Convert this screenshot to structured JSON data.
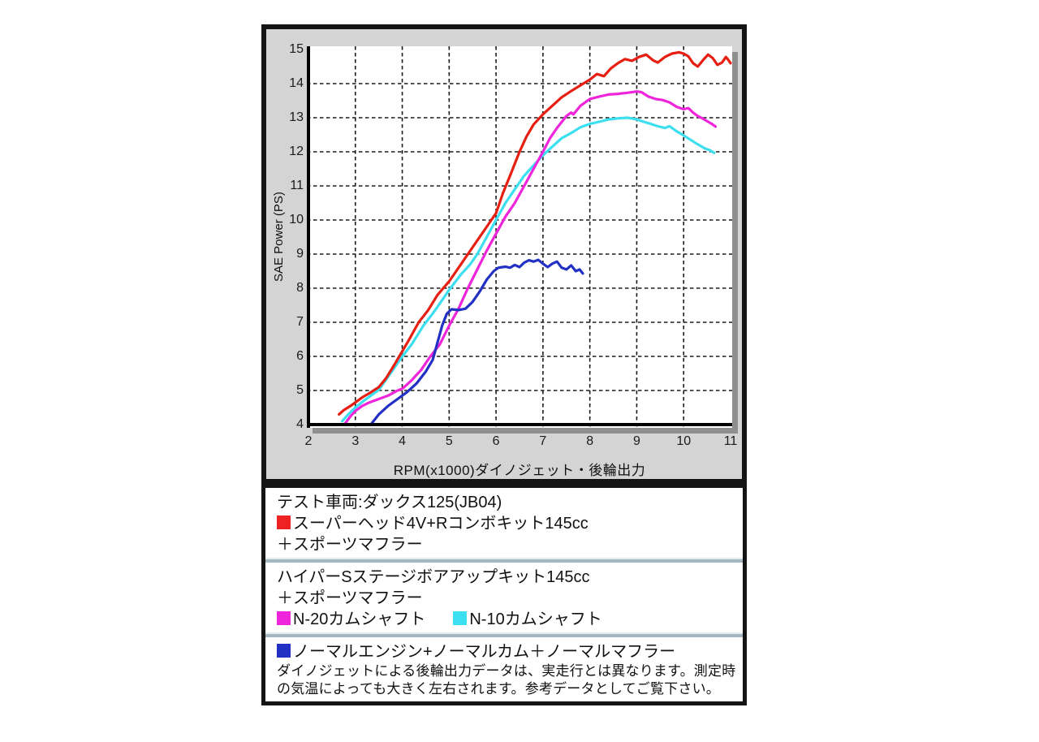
{
  "chart": {
    "panel_bg": "#d4d4d4",
    "plot_bg": "#ffffff",
    "shadow_color": "#8f8f8f",
    "grid_color": "#1a1a1a",
    "axis_color": "#000000",
    "x_axis_title": "RPM(x1000)ダイノジェット・後輪出力",
    "y_axis_title": "SAE Power (PS)",
    "x_ticks": [
      2,
      3,
      4,
      5,
      6,
      7,
      8,
      9,
      10,
      11
    ],
    "y_ticks": [
      15,
      14,
      13,
      12,
      11,
      10,
      9,
      8,
      7,
      6,
      5,
      4
    ]
  },
  "chart_data": {
    "type": "line",
    "xlabel": "RPM(x1000)ダイノジェット・後輪出力",
    "ylabel": "SAE Power (PS)",
    "xlim": [
      2,
      11
    ],
    "ylim": [
      4,
      15
    ],
    "grid": true,
    "legend_position": "below",
    "series": [
      {
        "name": "N-10カムシャフト",
        "color": "#3cdfef",
        "points": [
          [
            2.72,
            4.1
          ],
          [
            2.85,
            4.3
          ],
          [
            3.0,
            4.5
          ],
          [
            3.2,
            4.72
          ],
          [
            3.5,
            5.02
          ],
          [
            3.8,
            5.6
          ],
          [
            4.0,
            6.0
          ],
          [
            4.2,
            6.35
          ],
          [
            4.45,
            6.9
          ],
          [
            4.7,
            7.35
          ],
          [
            5.0,
            7.95
          ],
          [
            5.25,
            8.4
          ],
          [
            5.45,
            8.7
          ],
          [
            5.6,
            9.0
          ],
          [
            5.8,
            9.5
          ],
          [
            6.0,
            10.0
          ],
          [
            6.2,
            10.5
          ],
          [
            6.4,
            10.9
          ],
          [
            6.6,
            11.3
          ],
          [
            6.8,
            11.6
          ],
          [
            7.0,
            11.9
          ],
          [
            7.2,
            12.15
          ],
          [
            7.4,
            12.4
          ],
          [
            7.6,
            12.55
          ],
          [
            7.8,
            12.72
          ],
          [
            8.0,
            12.82
          ],
          [
            8.2,
            12.88
          ],
          [
            8.4,
            12.95
          ],
          [
            8.6,
            12.98
          ],
          [
            8.8,
            13.0
          ],
          [
            9.0,
            12.95
          ],
          [
            9.15,
            12.88
          ],
          [
            9.3,
            12.82
          ],
          [
            9.45,
            12.75
          ],
          [
            9.6,
            12.7
          ],
          [
            9.7,
            12.75
          ],
          [
            9.85,
            12.6
          ],
          [
            10.0,
            12.48
          ],
          [
            10.15,
            12.35
          ],
          [
            10.3,
            12.22
          ],
          [
            10.45,
            12.1
          ],
          [
            10.55,
            12.05
          ],
          [
            10.65,
            11.97
          ]
        ]
      },
      {
        "name": "N-20カムシャフト",
        "color": "#ef25dc",
        "points": [
          [
            2.78,
            4.03
          ],
          [
            2.9,
            4.25
          ],
          [
            3.0,
            4.4
          ],
          [
            3.15,
            4.55
          ],
          [
            3.3,
            4.65
          ],
          [
            3.5,
            4.75
          ],
          [
            3.7,
            4.85
          ],
          [
            3.9,
            5.0
          ],
          [
            4.0,
            5.05
          ],
          [
            4.2,
            5.3
          ],
          [
            4.4,
            5.6
          ],
          [
            4.6,
            6.0
          ],
          [
            4.8,
            6.35
          ],
          [
            5.0,
            6.9
          ],
          [
            5.2,
            7.4
          ],
          [
            5.4,
            8.0
          ],
          [
            5.6,
            8.55
          ],
          [
            5.8,
            9.1
          ],
          [
            6.0,
            9.6
          ],
          [
            6.2,
            10.1
          ],
          [
            6.4,
            10.5
          ],
          [
            6.6,
            11.0
          ],
          [
            6.8,
            11.5
          ],
          [
            7.0,
            12.0
          ],
          [
            7.15,
            12.4
          ],
          [
            7.3,
            12.7
          ],
          [
            7.5,
            13.05
          ],
          [
            7.6,
            13.15
          ],
          [
            7.65,
            13.1
          ],
          [
            7.8,
            13.35
          ],
          [
            8.0,
            13.55
          ],
          [
            8.2,
            13.62
          ],
          [
            8.4,
            13.68
          ],
          [
            8.6,
            13.7
          ],
          [
            8.8,
            13.73
          ],
          [
            9.0,
            13.77
          ],
          [
            9.1,
            13.75
          ],
          [
            9.25,
            13.62
          ],
          [
            9.4,
            13.55
          ],
          [
            9.55,
            13.52
          ],
          [
            9.7,
            13.45
          ],
          [
            9.85,
            13.32
          ],
          [
            10.0,
            13.25
          ],
          [
            10.1,
            13.28
          ],
          [
            10.2,
            13.15
          ],
          [
            10.3,
            13.05
          ],
          [
            10.4,
            12.98
          ],
          [
            10.5,
            12.9
          ],
          [
            10.6,
            12.82
          ],
          [
            10.68,
            12.74
          ]
        ]
      },
      {
        "name": "ノーマルエンジン+ノーマルカム＋ノーマルマフラー",
        "color": "#2231c4",
        "points": [
          [
            3.33,
            4.0
          ],
          [
            3.5,
            4.3
          ],
          [
            3.7,
            4.55
          ],
          [
            3.9,
            4.75
          ],
          [
            4.1,
            4.95
          ],
          [
            4.3,
            5.2
          ],
          [
            4.5,
            5.55
          ],
          [
            4.65,
            5.9
          ],
          [
            4.75,
            6.4
          ],
          [
            4.85,
            6.9
          ],
          [
            4.95,
            7.25
          ],
          [
            5.05,
            7.38
          ],
          [
            5.2,
            7.36
          ],
          [
            5.35,
            7.4
          ],
          [
            5.5,
            7.6
          ],
          [
            5.65,
            7.9
          ],
          [
            5.8,
            8.25
          ],
          [
            5.95,
            8.5
          ],
          [
            6.05,
            8.6
          ],
          [
            6.2,
            8.63
          ],
          [
            6.3,
            8.6
          ],
          [
            6.4,
            8.68
          ],
          [
            6.5,
            8.62
          ],
          [
            6.6,
            8.75
          ],
          [
            6.7,
            8.82
          ],
          [
            6.8,
            8.78
          ],
          [
            6.9,
            8.83
          ],
          [
            7.0,
            8.72
          ],
          [
            7.1,
            8.62
          ],
          [
            7.2,
            8.72
          ],
          [
            7.3,
            8.78
          ],
          [
            7.4,
            8.6
          ],
          [
            7.5,
            8.55
          ],
          [
            7.6,
            8.67
          ],
          [
            7.7,
            8.5
          ],
          [
            7.78,
            8.55
          ],
          [
            7.85,
            8.43
          ]
        ]
      },
      {
        "name": "スーパーヘッド4V+Rコンボキット145cc＋スポーツマフラー",
        "color": "#e71f13",
        "points": [
          [
            2.65,
            4.3
          ],
          [
            2.75,
            4.42
          ],
          [
            2.9,
            4.55
          ],
          [
            3.0,
            4.65
          ],
          [
            3.15,
            4.8
          ],
          [
            3.3,
            4.92
          ],
          [
            3.5,
            5.1
          ],
          [
            3.65,
            5.35
          ],
          [
            3.8,
            5.68
          ],
          [
            4.0,
            6.15
          ],
          [
            4.15,
            6.5
          ],
          [
            4.35,
            7.0
          ],
          [
            4.55,
            7.35
          ],
          [
            4.75,
            7.8
          ],
          [
            5.0,
            8.2
          ],
          [
            5.25,
            8.7
          ],
          [
            5.5,
            9.2
          ],
          [
            5.75,
            9.7
          ],
          [
            5.9,
            10.0
          ],
          [
            6.0,
            10.2
          ],
          [
            6.15,
            10.8
          ],
          [
            6.3,
            11.3
          ],
          [
            6.5,
            12.0
          ],
          [
            6.65,
            12.45
          ],
          [
            6.8,
            12.8
          ],
          [
            7.0,
            13.1
          ],
          [
            7.2,
            13.35
          ],
          [
            7.4,
            13.6
          ],
          [
            7.6,
            13.78
          ],
          [
            7.8,
            13.95
          ],
          [
            8.0,
            14.12
          ],
          [
            8.15,
            14.28
          ],
          [
            8.3,
            14.22
          ],
          [
            8.45,
            14.45
          ],
          [
            8.6,
            14.6
          ],
          [
            8.75,
            14.72
          ],
          [
            8.9,
            14.67
          ],
          [
            9.05,
            14.78
          ],
          [
            9.2,
            14.85
          ],
          [
            9.35,
            14.68
          ],
          [
            9.45,
            14.62
          ],
          [
            9.6,
            14.78
          ],
          [
            9.75,
            14.88
          ],
          [
            9.9,
            14.92
          ],
          [
            10.0,
            14.88
          ],
          [
            10.1,
            14.8
          ],
          [
            10.2,
            14.6
          ],
          [
            10.3,
            14.5
          ],
          [
            10.42,
            14.7
          ],
          [
            10.52,
            14.85
          ],
          [
            10.62,
            14.75
          ],
          [
            10.72,
            14.55
          ],
          [
            10.82,
            14.62
          ],
          [
            10.9,
            14.78
          ],
          [
            10.95,
            14.7
          ],
          [
            11.0,
            14.6
          ]
        ]
      }
    ]
  },
  "legend": {
    "section1": {
      "line1": "テスト車両:ダックス125(JB04)",
      "line2": "スーパーヘッド4V+Rコンボキット145cc",
      "line3": "＋スポーツマフラー",
      "swatch_color": "#ee2222"
    },
    "section2": {
      "line1": "ハイパーSステージボアアップキット145cc",
      "line2": "＋スポーツマフラー",
      "item1": "N-20カムシャフト",
      "item2": "N-10カムシャフト",
      "swatch1_color": "#ef25dc",
      "swatch2_color": "#3cdfef"
    },
    "section3": {
      "line1": "ノーマルエンジン+ノーマルカム＋ノーマルマフラー",
      "swatch_color": "#2231c4",
      "note1": "ダイノジェットによる後輪出力データは、実走行とは異なります。測定時",
      "note2": "の気温によっても大きく左右されます。参考データとしてご覧下さい。"
    }
  }
}
